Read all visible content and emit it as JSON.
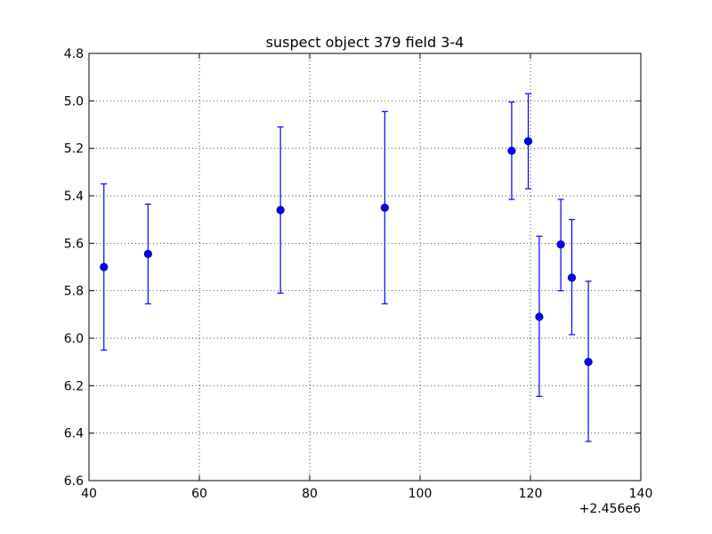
{
  "chart_data": {
    "type": "scatter",
    "title": "suspect object 379 field 3-4",
    "xlabel": "",
    "ylabel": "",
    "x_offset_label": "+2.456e6",
    "xlim": [
      40,
      140
    ],
    "ylim": [
      4.8,
      6.6
    ],
    "y_inverted": true,
    "x_ticks": [
      40,
      60,
      80,
      100,
      120,
      140
    ],
    "x_tick_labels": [
      "40",
      "60",
      "80",
      "100",
      "120",
      "140"
    ],
    "y_ticks": [
      4.8,
      5.0,
      5.2,
      5.4,
      5.6,
      5.8,
      6.0,
      6.2,
      6.4,
      6.6
    ],
    "y_tick_labels": [
      "4.8",
      "5.0",
      "5.2",
      "5.4",
      "5.6",
      "5.8",
      "6.0",
      "6.2",
      "6.4",
      "6.6"
    ],
    "grid": true,
    "marker_color": "#0000ff",
    "points": [
      {
        "x": 42.7,
        "y": 5.7,
        "err_low": 5.35,
        "err_high": 6.05
      },
      {
        "x": 50.7,
        "y": 5.645,
        "err_low": 5.435,
        "err_high": 5.855
      },
      {
        "x": 74.7,
        "y": 5.46,
        "err_low": 5.11,
        "err_high": 5.81
      },
      {
        "x": 93.6,
        "y": 5.45,
        "err_low": 5.045,
        "err_high": 5.855
      },
      {
        "x": 116.6,
        "y": 5.21,
        "err_low": 5.005,
        "err_high": 5.415
      },
      {
        "x": 119.6,
        "y": 5.17,
        "err_low": 4.97,
        "err_high": 5.37
      },
      {
        "x": 121.6,
        "y": 5.91,
        "err_low": 5.57,
        "err_high": 6.245
      },
      {
        "x": 125.5,
        "y": 5.605,
        "err_low": 5.415,
        "err_high": 5.8
      },
      {
        "x": 127.5,
        "y": 5.745,
        "err_low": 5.5,
        "err_high": 5.985
      },
      {
        "x": 130.5,
        "y": 6.1,
        "err_low": 5.76,
        "err_high": 6.435
      }
    ]
  }
}
